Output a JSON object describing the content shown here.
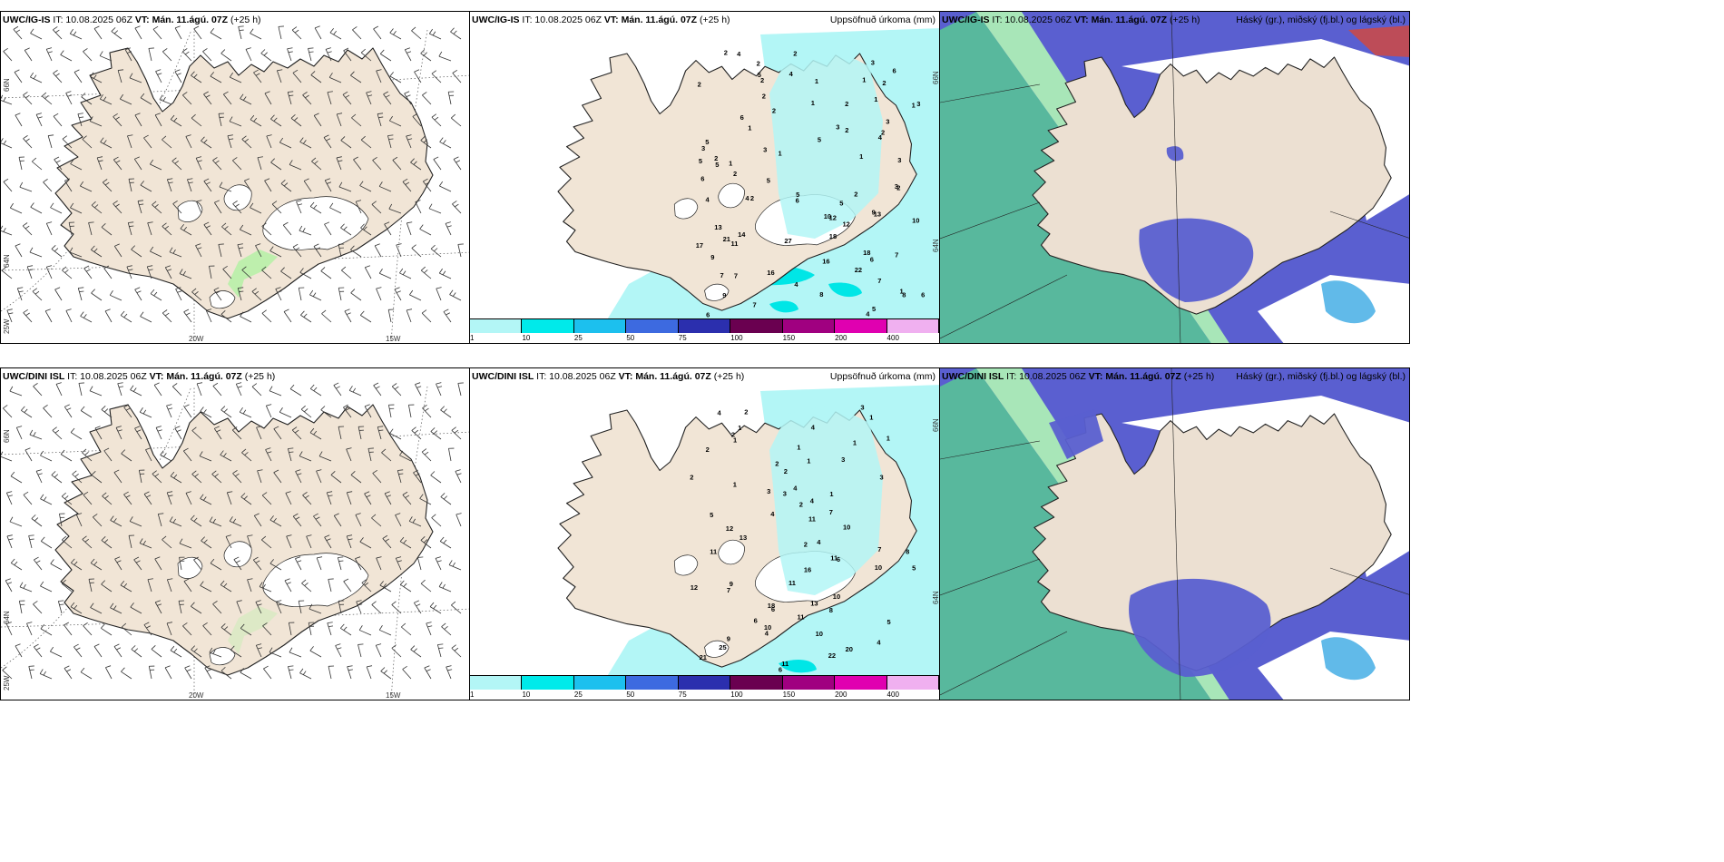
{
  "rows": [
    {
      "model": "UWC/IG-IS",
      "init": "IT: 10.08.2025 06Z",
      "valid": "VT: Mán. 11.ágú. 07Z",
      "lead": "(+25 h)",
      "precip_labels": [
        "2",
        "4",
        "2",
        "3",
        "6",
        "2",
        "4",
        "5",
        "2",
        "1",
        "2",
        "1",
        "2",
        "1",
        "2",
        "2",
        "1",
        "3",
        "1",
        "2",
        "3",
        "6",
        "3",
        "1",
        "2",
        "2",
        "5",
        "5",
        "4",
        "3",
        "3",
        "1",
        "2",
        "3",
        "1",
        "5",
        "5",
        "1",
        "2",
        "5",
        "6",
        "2",
        "3",
        "2",
        "5",
        "4",
        "6",
        "4",
        "2",
        "5",
        "10",
        "9",
        "12",
        "13",
        "10",
        "12",
        "14",
        "13",
        "21",
        "11",
        "18",
        "27",
        "17",
        "18",
        "6",
        "9",
        "7",
        "16",
        "22",
        "16",
        "7",
        "7",
        "4",
        "7",
        "1",
        "8",
        "8",
        "9",
        "6",
        "5",
        "7",
        "6",
        "4"
      ],
      "precip_colorbar_ticks": [
        "1",
        "10",
        "25",
        "50",
        "75",
        "100",
        "150",
        "200",
        "400"
      ]
    },
    {
      "model": "UWC/DINI ISL",
      "init": "IT: 10.08.2025 06Z",
      "valid": "VT: Mán. 11.ágú. 07Z",
      "lead": "(+25 h)",
      "precip_labels": [
        "4",
        "3",
        "2",
        "1",
        "4",
        "1",
        "2",
        "1",
        "1",
        "1",
        "2",
        "1",
        "3",
        "1",
        "2",
        "2",
        "3",
        "2",
        "1",
        "3",
        "1",
        "4",
        "3",
        "4",
        "2",
        "4",
        "5",
        "7",
        "11",
        "10",
        "12",
        "13",
        "4",
        "2",
        "7",
        "11",
        "8",
        "11",
        "6",
        "10",
        "5",
        "16",
        "11",
        "9",
        "12",
        "7",
        "10",
        "13",
        "18",
        "8",
        "6",
        "6",
        "11",
        "5",
        "10",
        "10",
        "4",
        "4",
        "9",
        "25",
        "21",
        "20",
        "22",
        "11",
        "6"
      ],
      "precip_colorbar_ticks": [
        "1",
        "10",
        "25",
        "50",
        "75",
        "100",
        "150",
        "200",
        "400"
      ]
    }
  ],
  "panel_headers": {
    "precip": "Uppsöfnuð úrkoma (mm)",
    "cloud": "Háský (gr.), miðský (fj.bl.) og lágský (bl.)"
  },
  "axis_labels": {
    "lat_66": "66N",
    "lat_64": "64N",
    "lon_25": "25W",
    "lon_20": "20W",
    "lon_15": "15W"
  },
  "colors": {
    "land": "#f1e5d6",
    "coast": "#222222",
    "glacier": "#ffffff",
    "precip_light": "#b3f6f6",
    "precip_mid": "#00e6e6",
    "cloud_high": "#5a5fd0",
    "cloud_mid_green": "#58b89d",
    "cloud_low_blue": "#3aa9e3",
    "cloud_red": "#c84a4a"
  },
  "colorbar_colors": [
    "#b3f6f6",
    "#00eaea",
    "#1cc0ee",
    "#3d6ae0",
    "#2b2fae",
    "#6a0050",
    "#a00080",
    "#e000b0",
    "#f0b0f0"
  ]
}
